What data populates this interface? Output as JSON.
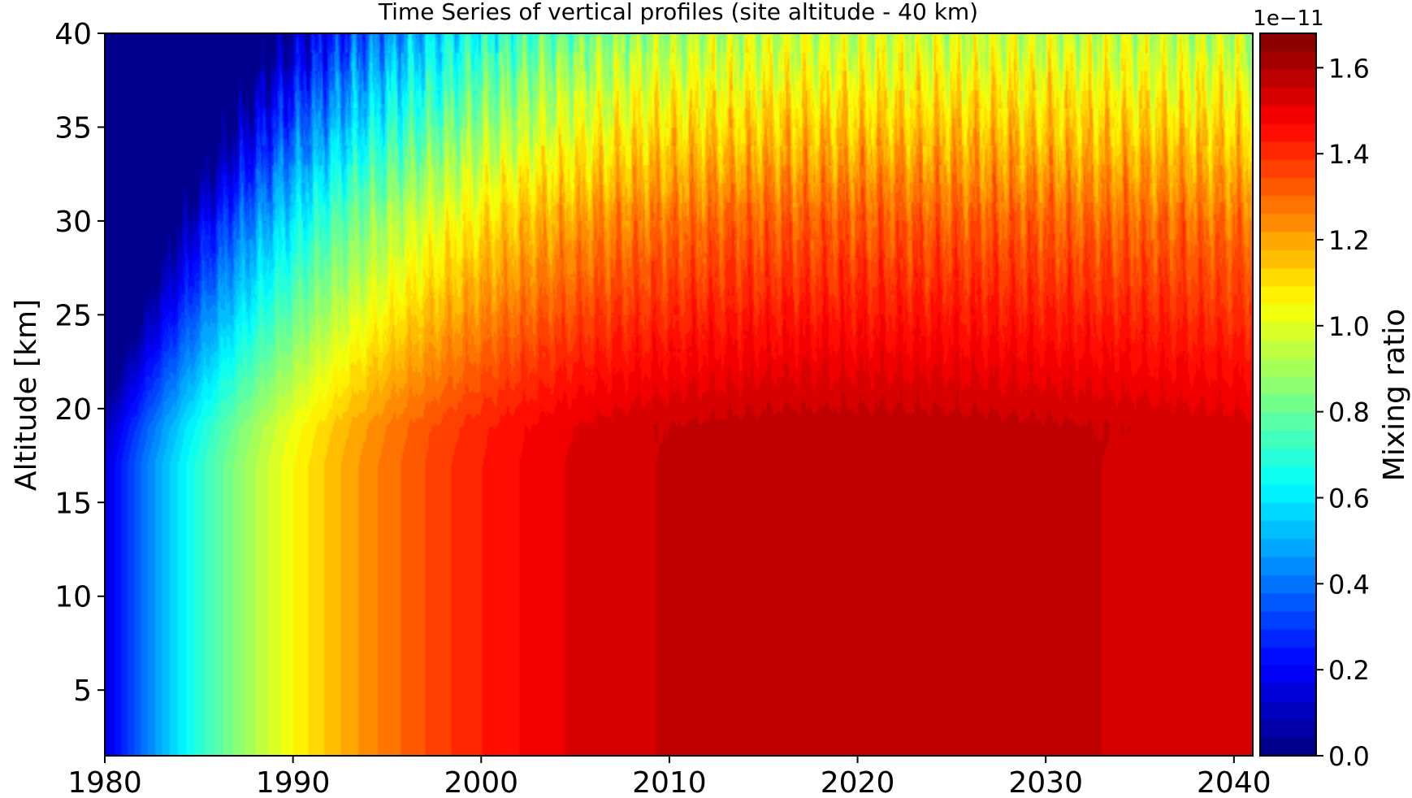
{
  "chart_data": {
    "type": "heatmap",
    "title": "Time Series of vertical profiles (site altitude - 40 km)",
    "ylabel": "Altitude [km]",
    "xlabel": "",
    "xlim": [
      1980,
      2041
    ],
    "ylim": [
      1.5,
      40
    ],
    "x_ticks": [
      "1980",
      "1990",
      "2000",
      "2010",
      "2020",
      "2030",
      "2040"
    ],
    "x_tick_values": [
      1980,
      1990,
      2000,
      2010,
      2020,
      2030,
      2040
    ],
    "y_ticks": [
      "5",
      "10",
      "15",
      "20",
      "25",
      "30",
      "35",
      "40"
    ],
    "y_tick_values": [
      5,
      10,
      15,
      20,
      25,
      30,
      35,
      40
    ],
    "colorbar": {
      "label": "Mixing ratio",
      "exponent_label": "1e−11",
      "range": [
        0.0,
        1.68
      ],
      "ticks": [
        "0.0",
        "0.2",
        "0.4",
        "0.6",
        "0.8",
        "1.0",
        "1.2",
        "1.4",
        "1.6"
      ],
      "tick_values": [
        0.0,
        0.2,
        0.4,
        0.6,
        0.8,
        1.0,
        1.2,
        1.4,
        1.6
      ],
      "colormap": "jet",
      "levels": 40
    },
    "grid": false
  }
}
